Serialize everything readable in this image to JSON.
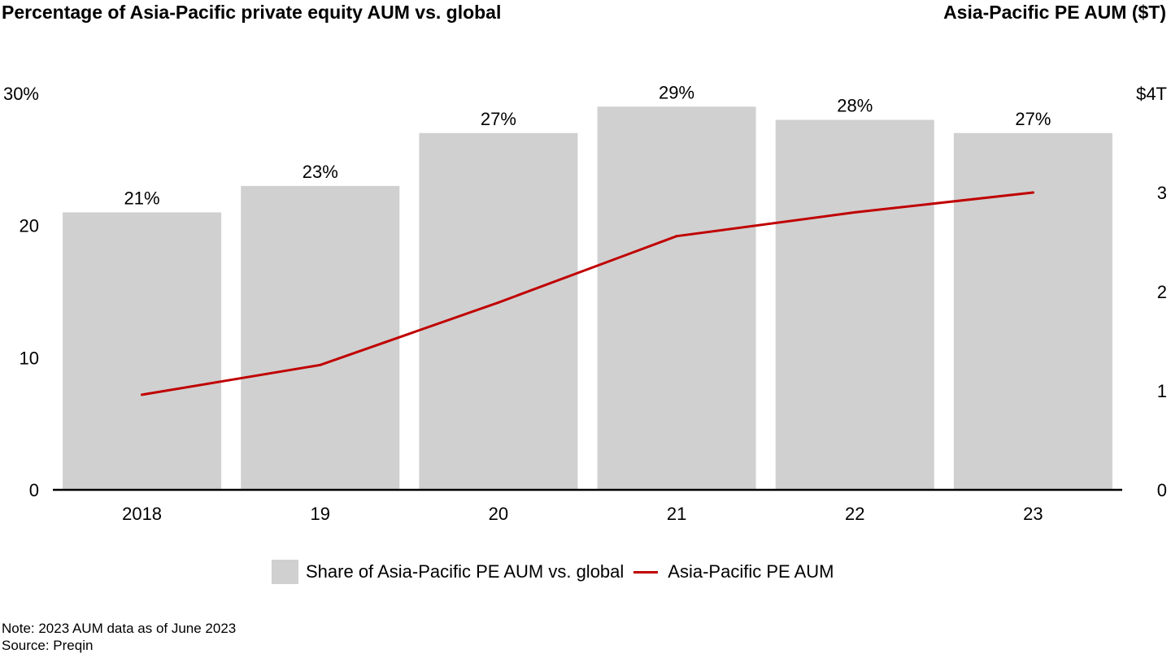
{
  "header": {
    "title_left": "Percentage of Asia-Pacific private equity AUM vs. global",
    "title_right": "Asia-Pacific PE AUM ($T)"
  },
  "footer": {
    "note": "Note: 2023 AUM data as of June 2023",
    "source": "Source: Preqin"
  },
  "colors": {
    "bar": "#d0d0d0",
    "line": "#c00000",
    "axis": "#000000"
  },
  "chart_data": {
    "type": "bar",
    "categories": [
      "2018",
      "19",
      "20",
      "21",
      "22",
      "23"
    ],
    "series": [
      {
        "name": "Share of Asia-Pacific PE AUM vs. global",
        "type": "bar",
        "axis": "left",
        "values": [
          21,
          23,
          27,
          29,
          28,
          27
        ],
        "labels": [
          "21%",
          "23%",
          "27%",
          "29%",
          "28%",
          "27%"
        ]
      },
      {
        "name": "Asia-Pacific PE AUM",
        "type": "line",
        "axis": "right",
        "values": [
          0.96,
          1.26,
          1.89,
          2.56,
          2.8,
          3.0
        ]
      }
    ],
    "y_left": {
      "ylim": [
        0,
        30
      ],
      "ticks": [
        0,
        10,
        20,
        30
      ],
      "tick_labels": [
        "0",
        "10",
        "20",
        "30%"
      ]
    },
    "y_right": {
      "ylim": [
        0,
        4
      ],
      "ticks": [
        0,
        1,
        2,
        3,
        4
      ],
      "tick_labels": [
        "0",
        "1",
        "2",
        "3",
        "$4T"
      ]
    },
    "grid": false,
    "legend": "bottom"
  }
}
